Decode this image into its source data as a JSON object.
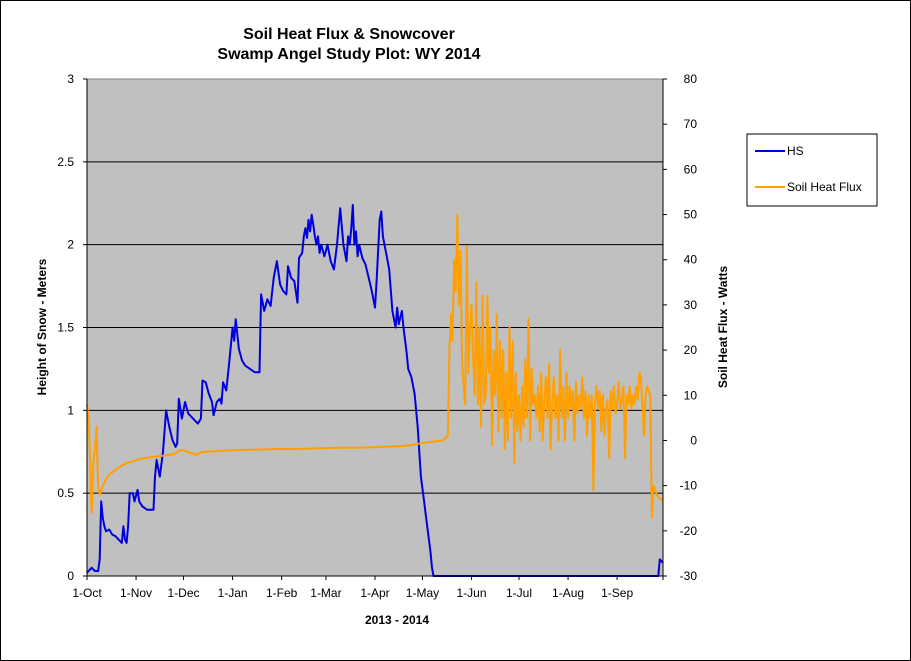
{
  "chart_data": {
    "type": "line",
    "title": "Soil Heat Flux & Snowcover",
    "subtitle": "Swamp Angel Study Plot: WY 2014",
    "xlabel": "2013 - 2014",
    "ylabel_left": "Height of Snow - Meters",
    "ylabel_right": "Soil Heat Flux - Watts",
    "x_ticks": [
      "1-Oct",
      "1-Nov",
      "1-Dec",
      "1-Jan",
      "1-Feb",
      "1-Mar",
      "1-Apr",
      "1-May",
      "1-Jun",
      "1-Jul",
      "1-Aug",
      "1-Sep"
    ],
    "x_tick_days": [
      0,
      31,
      61,
      92,
      123,
      151,
      182,
      212,
      243,
      273,
      304,
      335
    ],
    "x_range_days": [
      0,
      364
    ],
    "ylim_left": [
      0,
      3
    ],
    "yticks_left": [
      "0",
      "0.5",
      "1",
      "1.5",
      "2",
      "2.5",
      "3"
    ],
    "ylim_right": [
      -30,
      80
    ],
    "yticks_right": [
      "-30",
      "-20",
      "-10",
      "0",
      "10",
      "20",
      "30",
      "40",
      "50",
      "60",
      "70",
      "80"
    ],
    "grid": "horizontal major gridlines on left axis",
    "plot_background": "#c0c0c0",
    "legend_position": "right",
    "series": [
      {
        "name": "HS",
        "axis": "left",
        "color": "#0000dd",
        "points": [
          [
            0,
            0.02
          ],
          [
            3,
            0.05
          ],
          [
            5,
            0.03
          ],
          [
            7,
            0.03
          ],
          [
            8,
            0.1
          ],
          [
            9,
            0.45
          ],
          [
            10,
            0.35
          ],
          [
            11,
            0.3
          ],
          [
            12,
            0.27
          ],
          [
            14,
            0.28
          ],
          [
            16,
            0.25
          ],
          [
            18,
            0.24
          ],
          [
            20,
            0.22
          ],
          [
            22,
            0.2
          ],
          [
            23,
            0.3
          ],
          [
            24,
            0.22
          ],
          [
            25,
            0.2
          ],
          [
            26,
            0.3
          ],
          [
            27,
            0.5
          ],
          [
            29,
            0.5
          ],
          [
            30,
            0.45
          ],
          [
            32,
            0.52
          ],
          [
            33,
            0.45
          ],
          [
            35,
            0.42
          ],
          [
            38,
            0.4
          ],
          [
            42,
            0.4
          ],
          [
            43,
            0.6
          ],
          [
            44,
            0.7
          ],
          [
            46,
            0.6
          ],
          [
            48,
            0.75
          ],
          [
            50,
            1.0
          ],
          [
            52,
            0.9
          ],
          [
            54,
            0.82
          ],
          [
            56,
            0.78
          ],
          [
            57,
            0.8
          ],
          [
            58,
            1.07
          ],
          [
            60,
            0.95
          ],
          [
            62,
            1.05
          ],
          [
            64,
            0.98
          ],
          [
            67,
            0.95
          ],
          [
            70,
            0.92
          ],
          [
            72,
            0.95
          ],
          [
            73,
            1.18
          ],
          [
            75,
            1.17
          ],
          [
            77,
            1.1
          ],
          [
            79,
            1.05
          ],
          [
            80,
            0.97
          ],
          [
            82,
            1.05
          ],
          [
            84,
            1.07
          ],
          [
            85,
            1.04
          ],
          [
            86,
            1.17
          ],
          [
            88,
            1.12
          ],
          [
            90,
            1.3
          ],
          [
            92,
            1.5
          ],
          [
            93,
            1.42
          ],
          [
            94,
            1.55
          ],
          [
            96,
            1.37
          ],
          [
            98,
            1.3
          ],
          [
            100,
            1.27
          ],
          [
            103,
            1.25
          ],
          [
            106,
            1.23
          ],
          [
            109,
            1.23
          ],
          [
            110,
            1.7
          ],
          [
            112,
            1.6
          ],
          [
            114,
            1.67
          ],
          [
            116,
            1.63
          ],
          [
            118,
            1.8
          ],
          [
            120,
            1.9
          ],
          [
            122,
            1.76
          ],
          [
            124,
            1.72
          ],
          [
            126,
            1.7
          ],
          [
            127,
            1.87
          ],
          [
            129,
            1.8
          ],
          [
            131,
            1.78
          ],
          [
            133,
            1.65
          ],
          [
            134,
            1.92
          ],
          [
            136,
            1.95
          ],
          [
            137,
            2.05
          ],
          [
            138,
            2.1
          ],
          [
            139,
            2.04
          ],
          [
            140,
            2.15
          ],
          [
            141,
            2.08
          ],
          [
            142,
            2.18
          ],
          [
            143,
            2.12
          ],
          [
            144,
            2.05
          ],
          [
            145,
            2.0
          ],
          [
            146,
            2.05
          ],
          [
            147,
            1.95
          ],
          [
            148,
            2.0
          ],
          [
            150,
            1.93
          ],
          [
            152,
            2.0
          ],
          [
            154,
            1.9
          ],
          [
            156,
            1.85
          ],
          [
            158,
            2.0
          ],
          [
            160,
            2.22
          ],
          [
            162,
            2.0
          ],
          [
            164,
            1.9
          ],
          [
            165,
            2.05
          ],
          [
            166,
            2.0
          ],
          [
            167,
            2.1
          ],
          [
            168,
            2.24
          ],
          [
            169,
            2.0
          ],
          [
            170,
            2.08
          ],
          [
            171,
            1.93
          ],
          [
            172,
            2.0
          ],
          [
            174,
            1.92
          ],
          [
            176,
            1.88
          ],
          [
            178,
            1.8
          ],
          [
            180,
            1.72
          ],
          [
            182,
            1.62
          ],
          [
            183,
            1.78
          ],
          [
            185,
            2.15
          ],
          [
            186,
            2.2
          ],
          [
            187,
            2.05
          ],
          [
            189,
            1.95
          ],
          [
            191,
            1.85
          ],
          [
            193,
            1.6
          ],
          [
            195,
            1.5
          ],
          [
            196,
            1.62
          ],
          [
            197,
            1.52
          ],
          [
            199,
            1.6
          ],
          [
            200,
            1.5
          ],
          [
            202,
            1.35
          ],
          [
            203,
            1.25
          ],
          [
            205,
            1.2
          ],
          [
            207,
            1.1
          ],
          [
            209,
            0.9
          ],
          [
            211,
            0.6
          ],
          [
            213,
            0.45
          ],
          [
            215,
            0.3
          ],
          [
            217,
            0.15
          ],
          [
            218,
            0.05
          ],
          [
            219,
            0.0
          ],
          [
            361,
            0.0
          ],
          [
            362,
            0.1
          ],
          [
            364,
            0.08
          ]
        ]
      },
      {
        "name": "Soil Heat Flux",
        "axis": "right",
        "color": "#ffa000",
        "points": [
          [
            0,
            8
          ],
          [
            1,
            5
          ],
          [
            2,
            -5
          ],
          [
            3,
            -16
          ],
          [
            4,
            -5
          ],
          [
            5,
            -2
          ],
          [
            6,
            3
          ],
          [
            7,
            -10
          ],
          [
            8,
            -12
          ],
          [
            10,
            -10
          ],
          [
            13,
            -8
          ],
          [
            16,
            -7
          ],
          [
            20,
            -6
          ],
          [
            25,
            -5
          ],
          [
            30,
            -4.5
          ],
          [
            35,
            -4
          ],
          [
            40,
            -3.7
          ],
          [
            45,
            -3.5
          ],
          [
            50,
            -3.3
          ],
          [
            55,
            -3.0
          ],
          [
            58,
            -2.3
          ],
          [
            60,
            -2.1
          ],
          [
            62,
            -2.3
          ],
          [
            64,
            -2.6
          ],
          [
            67,
            -2.9
          ],
          [
            69,
            -3.2
          ],
          [
            72,
            -2.6
          ],
          [
            76,
            -2.5
          ],
          [
            80,
            -2.4
          ],
          [
            85,
            -2.3
          ],
          [
            90,
            -2.2
          ],
          [
            100,
            -2.1
          ],
          [
            110,
            -2.0
          ],
          [
            120,
            -1.9
          ],
          [
            130,
            -1.9
          ],
          [
            140,
            -1.8
          ],
          [
            150,
            -1.7
          ],
          [
            160,
            -1.6
          ],
          [
            170,
            -1.6
          ],
          [
            180,
            -1.5
          ],
          [
            190,
            -1.4
          ],
          [
            200,
            -1.2
          ],
          [
            205,
            -1.0
          ],
          [
            210,
            -0.7
          ],
          [
            215,
            -0.4
          ],
          [
            220,
            -0.2
          ],
          [
            225,
            0
          ],
          [
            228,
            1
          ],
          [
            229,
            20
          ],
          [
            230,
            28
          ],
          [
            231,
            22
          ],
          [
            232,
            40
          ],
          [
            233,
            33
          ],
          [
            234,
            50
          ],
          [
            235,
            30
          ],
          [
            236,
            42
          ],
          [
            237,
            18
          ],
          [
            238,
            12
          ],
          [
            239,
            8
          ],
          [
            240,
            43
          ],
          [
            241,
            15
          ],
          [
            242,
            25
          ],
          [
            243,
            30
          ],
          [
            244,
            18
          ],
          [
            245,
            10
          ],
          [
            246,
            35
          ],
          [
            247,
            8
          ],
          [
            248,
            25
          ],
          [
            249,
            3
          ],
          [
            250,
            32
          ],
          [
            251,
            8
          ],
          [
            252,
            10
          ],
          [
            253,
            32
          ],
          [
            254,
            15
          ],
          [
            255,
            25
          ],
          [
            256,
            -1
          ],
          [
            257,
            20
          ],
          [
            258,
            10
          ],
          [
            259,
            28
          ],
          [
            260,
            2
          ],
          [
            261,
            22
          ],
          [
            262,
            5
          ],
          [
            263,
            20
          ],
          [
            264,
            -2
          ],
          [
            265,
            15
          ],
          [
            266,
            0
          ],
          [
            267,
            25
          ],
          [
            268,
            5
          ],
          [
            269,
            22
          ],
          [
            270,
            -5
          ],
          [
            271,
            15
          ],
          [
            272,
            2
          ],
          [
            273,
            10
          ],
          [
            274,
            0
          ],
          [
            275,
            12
          ],
          [
            276,
            3
          ],
          [
            277,
            18
          ],
          [
            278,
            5
          ],
          [
            279,
            27
          ],
          [
            280,
            0
          ],
          [
            281,
            16
          ],
          [
            282,
            8
          ],
          [
            283,
            10
          ],
          [
            284,
            5
          ],
          [
            285,
            12
          ],
          [
            286,
            2
          ],
          [
            287,
            15
          ],
          [
            288,
            0
          ],
          [
            289,
            9
          ],
          [
            290,
            14
          ],
          [
            291,
            5
          ],
          [
            292,
            17
          ],
          [
            293,
            -2
          ],
          [
            294,
            8
          ],
          [
            295,
            14
          ],
          [
            296,
            5
          ],
          [
            297,
            10
          ],
          [
            298,
            0
          ],
          [
            299,
            20
          ],
          [
            300,
            5
          ],
          [
            301,
            12
          ],
          [
            302,
            0
          ],
          [
            303,
            15
          ],
          [
            304,
            5
          ],
          [
            305,
            12
          ],
          [
            306,
            7
          ],
          [
            307,
            11
          ],
          [
            308,
            0
          ],
          [
            309,
            13
          ],
          [
            310,
            6
          ],
          [
            311,
            10
          ],
          [
            312,
            7
          ],
          [
            313,
            14
          ],
          [
            314,
            5
          ],
          [
            315,
            11
          ],
          [
            316,
            1
          ],
          [
            317,
            10
          ],
          [
            318,
            5
          ],
          [
            319,
            10
          ],
          [
            320,
            -11
          ],
          [
            321,
            8
          ],
          [
            322,
            12
          ],
          [
            323,
            7
          ],
          [
            324,
            11
          ],
          [
            325,
            2
          ],
          [
            326,
            10
          ],
          [
            327,
            1
          ],
          [
            328,
            7
          ],
          [
            329,
            9
          ],
          [
            330,
            -4
          ],
          [
            331,
            11
          ],
          [
            332,
            7
          ],
          [
            333,
            12
          ],
          [
            334,
            6
          ],
          [
            335,
            8
          ],
          [
            336,
            13
          ],
          [
            337,
            7
          ],
          [
            338,
            9
          ],
          [
            339,
            12
          ],
          [
            340,
            -4
          ],
          [
            341,
            10
          ],
          [
            342,
            8
          ],
          [
            343,
            12
          ],
          [
            344,
            7
          ],
          [
            345,
            10
          ],
          [
            346,
            8
          ],
          [
            347,
            12
          ],
          [
            348,
            9
          ],
          [
            349,
            15
          ],
          [
            350,
            14
          ],
          [
            351,
            8
          ],
          [
            352,
            1
          ],
          [
            353,
            10
          ],
          [
            354,
            12
          ],
          [
            356,
            10
          ],
          [
            357,
            -17
          ],
          [
            358,
            -10
          ],
          [
            360,
            -12
          ],
          [
            362,
            -13
          ],
          [
            364,
            -13
          ]
        ]
      }
    ]
  }
}
